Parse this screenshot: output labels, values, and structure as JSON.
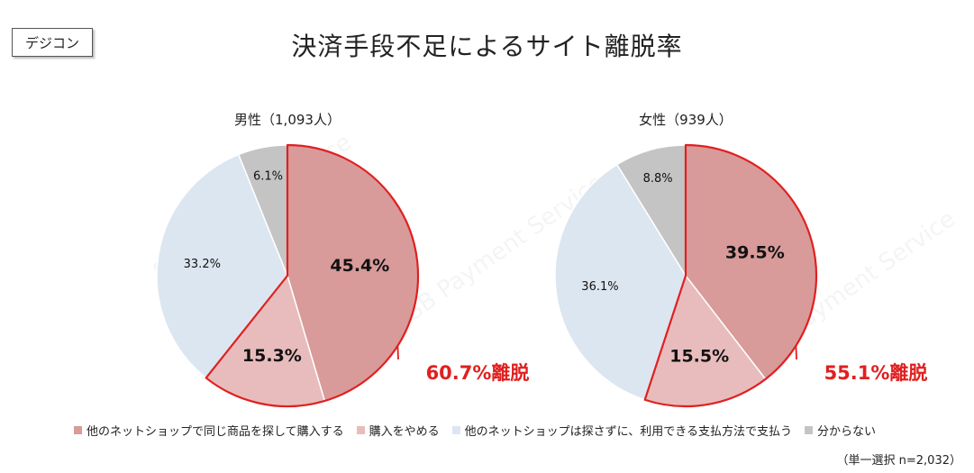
{
  "tag": "デジコン",
  "title": "決済手段不足によるサイト離脱率",
  "watermark": "SB Payment Service",
  "footnote": "（単一選択 n=2,032）",
  "colors": {
    "series": [
      "#d99a9a",
      "#e8bcbc",
      "#dce6f0",
      "#c4c4c4"
    ],
    "highlight": "#e02020"
  },
  "chart_data": [
    {
      "type": "pie",
      "title": "男性（1,093人）",
      "slices": [
        {
          "name": "他のネットショップで同じ商品を探して購入する",
          "value": 45.4,
          "label": "45.4%"
        },
        {
          "name": "購入をやめる",
          "value": 15.3,
          "label": "15.3%"
        },
        {
          "name": "他のネットショップは探さずに、利用できる支払方法で支払う",
          "value": 33.2,
          "label": "33.2%"
        },
        {
          "name": "分からない",
          "value": 6.1,
          "label": "6.1%"
        }
      ],
      "annotation": "60.7%離脱"
    },
    {
      "type": "pie",
      "title": "女性（939人）",
      "slices": [
        {
          "name": "他のネットショップで同じ商品を探して購入する",
          "value": 39.5,
          "label": "39.5%"
        },
        {
          "name": "購入をやめる",
          "value": 15.5,
          "label": "15.5%"
        },
        {
          "name": "他のネットショップは探さずに、利用できる支払方法で支払う",
          "value": 36.1,
          "label": "36.1%"
        },
        {
          "name": "分からない",
          "value": 8.8,
          "label": "8.8%"
        }
      ],
      "annotation": "55.1%離脱"
    }
  ],
  "legend": [
    "他のネットショップで同じ商品を探して購入する",
    "購入をやめる",
    "他のネットショップは探さずに、利用できる支払方法で支払う",
    "分からない"
  ]
}
